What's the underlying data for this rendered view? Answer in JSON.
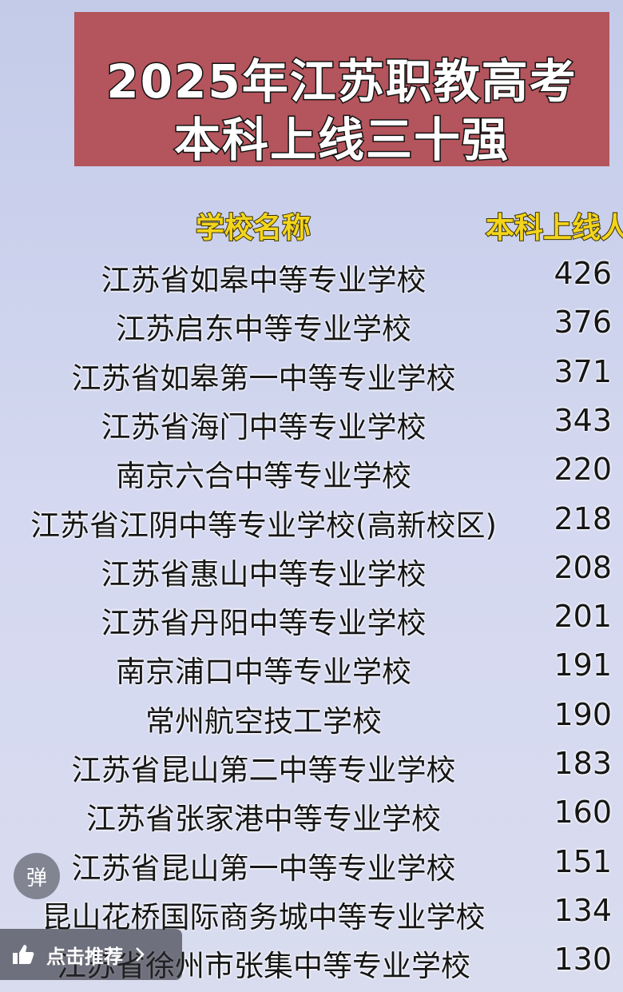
{
  "header": {
    "title_lines": [
      "2025年江苏职教高考",
      "本科上线三十强"
    ]
  },
  "table": {
    "columns": [
      "学校名称",
      "本科上线人"
    ],
    "rows": [
      [
        "江苏省如皋中等专业学校",
        426
      ],
      [
        "江苏启东中等专业学校",
        376
      ],
      [
        "江苏省如皋第一中等专业学校",
        371
      ],
      [
        "江苏省海门中等专业学校",
        343
      ],
      [
        "南京六合中等专业学校",
        220
      ],
      [
        "江苏省江阴中等专业学校(高新校区)",
        218
      ],
      [
        "江苏省惠山中等专业学校",
        208
      ],
      [
        "江苏省丹阳中等专业学校",
        201
      ],
      [
        "南京浦口中等专业学校",
        191
      ],
      [
        "常州航空技工学校",
        190
      ],
      [
        "江苏省昆山第二中等专业学校",
        183
      ],
      [
        "江苏省张家港中等专业学校",
        160
      ],
      [
        "江苏省昆山第一中等专业学校",
        151
      ],
      [
        "昆山花桥国际商务城中等专业学校",
        134
      ],
      [
        "江苏省徐州市张集中等专业学校",
        130
      ]
    ]
  },
  "ui": {
    "danmaku_button": "弹",
    "recommend_button": "点击推荐"
  }
}
